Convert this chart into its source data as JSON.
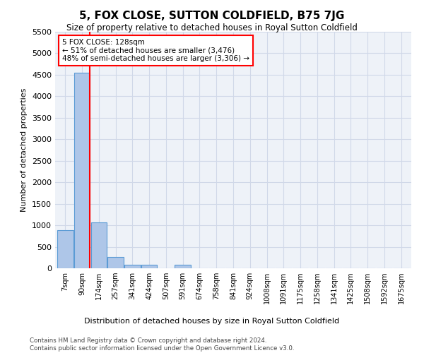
{
  "title": "5, FOX CLOSE, SUTTON COLDFIELD, B75 7JG",
  "subtitle": "Size of property relative to detached houses in Royal Sutton Coldfield",
  "xlabel": "Distribution of detached houses by size in Royal Sutton Coldfield",
  "ylabel": "Number of detached properties",
  "footer": "Contains HM Land Registry data © Crown copyright and database right 2024.\nContains public sector information licensed under the Open Government Licence v3.0.",
  "bin_labels": [
    "7sqm",
    "90sqm",
    "174sqm",
    "257sqm",
    "341sqm",
    "424sqm",
    "507sqm",
    "591sqm",
    "674sqm",
    "758sqm",
    "841sqm",
    "924sqm",
    "1008sqm",
    "1091sqm",
    "1175sqm",
    "1258sqm",
    "1341sqm",
    "1425sqm",
    "1508sqm",
    "1592sqm",
    "1675sqm"
  ],
  "bar_heights": [
    880,
    4540,
    1060,
    270,
    90,
    90,
    0,
    90,
    0,
    0,
    0,
    0,
    0,
    0,
    0,
    0,
    0,
    0,
    0,
    0,
    0
  ],
  "bar_color": "#aec6e8",
  "bar_edge_color": "#5b9bd5",
  "red_line_x": 1.45,
  "annotation_text": "5 FOX CLOSE: 128sqm\n← 51% of detached houses are smaller (3,476)\n48% of semi-detached houses are larger (3,306) →",
  "annotation_box_color": "white",
  "annotation_box_edge": "red",
  "ylim": [
    0,
    5500
  ],
  "yticks": [
    0,
    500,
    1000,
    1500,
    2000,
    2500,
    3000,
    3500,
    4000,
    4500,
    5000,
    5500
  ],
  "grid_color": "#d0d8e8",
  "bg_color": "#eef2f8"
}
